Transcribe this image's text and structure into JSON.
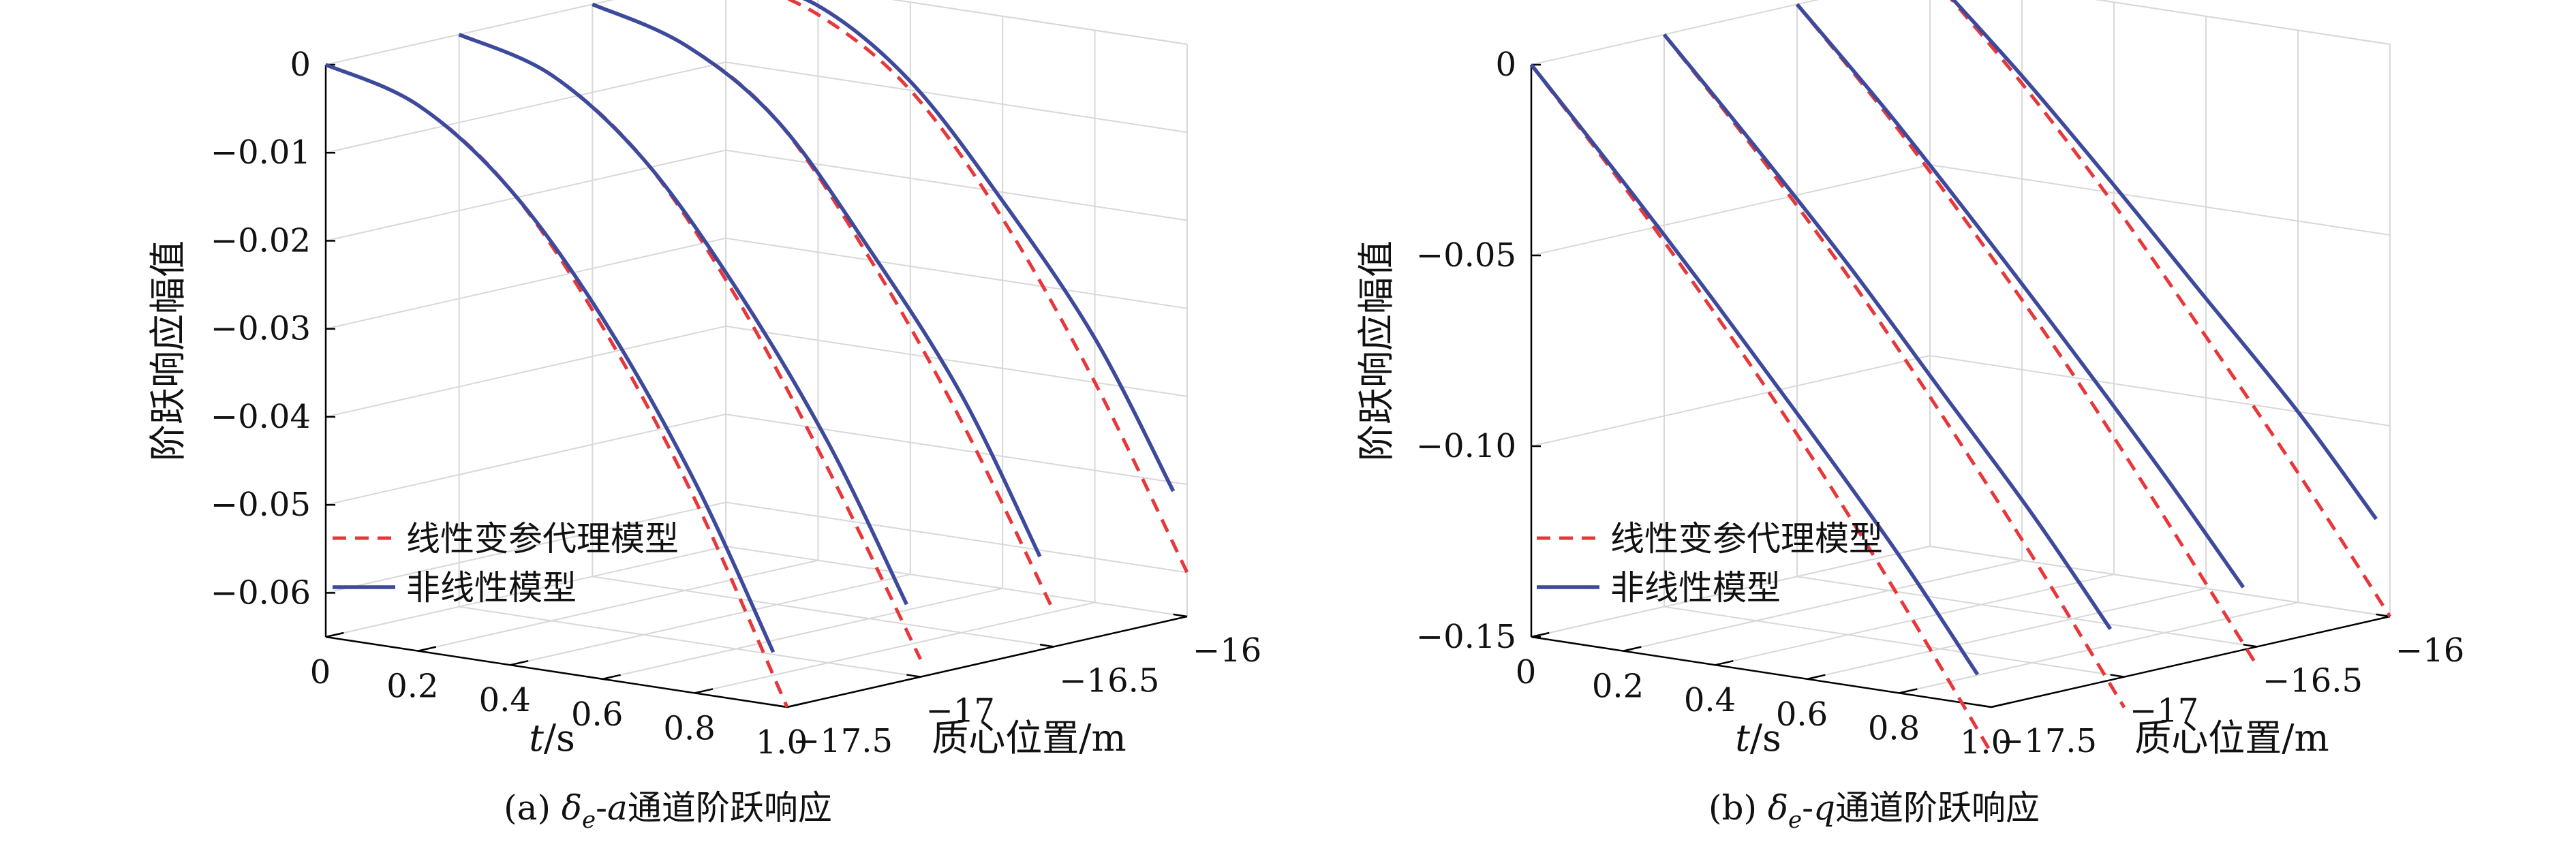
{
  "legend": {
    "linear": "线性变参代理模型",
    "nonlinear": "非线性模型"
  },
  "colors": {
    "linear": "#e8373a",
    "nonlinear": "#3d4a9c"
  },
  "chart_data": [
    {
      "type": "line",
      "caption": {
        "prefix": "(a) ",
        "symbol": "δ",
        "sub": "e",
        "channel": "-a",
        "suffix": "通道阶跃响应"
      },
      "xlabel": {
        "italic": "t",
        "unit": "/s"
      },
      "ylabel": "质心位置/m",
      "zlabel": "阶跃响应幅值",
      "xlim": [
        0,
        1.0
      ],
      "xticks": [
        "0",
        "0.2",
        "0.4",
        "0.6",
        "0.8",
        "1.0"
      ],
      "ylim": [
        -17.5,
        -16
      ],
      "yticks": [
        "−17.5",
        "−17",
        "−16.5",
        "−16"
      ],
      "zlim": [
        -0.065,
        0
      ],
      "zticks": [
        "0",
        "−0.01",
        "−0.02",
        "−0.03",
        "−0.04",
        "−0.05",
        "−0.06"
      ],
      "grid": true,
      "legend_position": "bottom-left",
      "series": [
        {
          "name": "线性变参代理模型",
          "style": "dashed",
          "position": -17.5,
          "t": [
            0,
            0.2,
            0.4,
            0.6,
            0.8,
            1.0
          ],
          "values": [
            0,
            -0.003,
            -0.011,
            -0.025,
            -0.043,
            -0.065
          ]
        },
        {
          "name": "非线性模型",
          "style": "solid",
          "position": -17.5,
          "t": [
            0,
            0.2,
            0.4,
            0.6,
            0.8,
            0.97
          ],
          "values": [
            0,
            -0.003,
            -0.011,
            -0.024,
            -0.041,
            -0.059
          ]
        },
        {
          "name": "线性变参代理模型",
          "style": "dashed",
          "position": -17,
          "t": [
            0,
            0.2,
            0.4,
            0.6,
            0.8,
            1.0
          ],
          "values": [
            0,
            -0.003,
            -0.011,
            -0.025,
            -0.043,
            -0.063
          ]
        },
        {
          "name": "非线性模型",
          "style": "solid",
          "position": -17,
          "t": [
            0,
            0.2,
            0.4,
            0.6,
            0.8,
            0.97
          ],
          "values": [
            0,
            -0.003,
            -0.011,
            -0.024,
            -0.04,
            -0.057
          ]
        },
        {
          "name": "线性变参代理模型",
          "style": "dashed",
          "position": -16.5,
          "t": [
            0,
            0.2,
            0.4,
            0.6,
            0.8,
            1.0
          ],
          "values": [
            0,
            -0.003,
            -0.01,
            -0.024,
            -0.041,
            -0.061
          ]
        },
        {
          "name": "非线性模型",
          "style": "solid",
          "position": -16.5,
          "t": [
            0,
            0.2,
            0.4,
            0.6,
            0.8,
            0.97
          ],
          "values": [
            0,
            -0.003,
            -0.01,
            -0.023,
            -0.038,
            -0.055
          ]
        },
        {
          "name": "线性变参代理模型",
          "style": "dashed",
          "position": -16,
          "t": [
            0,
            0.2,
            0.4,
            0.6,
            0.8,
            1.0
          ],
          "values": [
            0,
            -0.003,
            -0.01,
            -0.023,
            -0.04,
            -0.06
          ]
        },
        {
          "name": "非线性模型",
          "style": "solid",
          "position": -16,
          "t": [
            0,
            0.2,
            0.4,
            0.6,
            0.8,
            0.97
          ],
          "values": [
            0,
            -0.002,
            -0.009,
            -0.021,
            -0.035,
            -0.051
          ]
        }
      ]
    },
    {
      "type": "line",
      "caption": {
        "prefix": "(b) ",
        "symbol": "δ",
        "sub": "e",
        "channel": "-q",
        "suffix": "通道阶跃响应"
      },
      "xlabel": {
        "italic": "t",
        "unit": "/s"
      },
      "ylabel": "质心位置/m",
      "zlabel": "阶跃响应幅值",
      "xlim": [
        0,
        1.0
      ],
      "xticks": [
        "0",
        "0.2",
        "0.4",
        "0.6",
        "0.8",
        "1.0"
      ],
      "ylim": [
        -17.5,
        -16
      ],
      "yticks": [
        "−17.5",
        "−17",
        "−16.5",
        "−16"
      ],
      "zlim": [
        -0.15,
        0
      ],
      "zticks": [
        "0",
        "−0.05",
        "−0.10",
        "−0.15"
      ],
      "grid": true,
      "legend_position": "bottom-left",
      "series": [
        {
          "name": "线性变参代理模型",
          "style": "dashed",
          "position": -17.5,
          "t": [
            0,
            0.2,
            0.4,
            0.6,
            0.8,
            1.0
          ],
          "values": [
            0,
            -0.028,
            -0.058,
            -0.09,
            -0.125,
            -0.162
          ]
        },
        {
          "name": "非线性模型",
          "style": "solid",
          "position": -17.5,
          "t": [
            0,
            0.2,
            0.4,
            0.6,
            0.8,
            0.97
          ],
          "values": [
            0,
            -0.027,
            -0.055,
            -0.084,
            -0.114,
            -0.142
          ]
        },
        {
          "name": "线性变参代理模型",
          "style": "dashed",
          "position": -17,
          "t": [
            0,
            0.2,
            0.4,
            0.6,
            0.8,
            1.0
          ],
          "values": [
            0,
            -0.027,
            -0.056,
            -0.088,
            -0.122,
            -0.158
          ]
        },
        {
          "name": "非线性模型",
          "style": "solid",
          "position": -17,
          "t": [
            0,
            0.2,
            0.4,
            0.6,
            0.8,
            0.97
          ],
          "values": [
            0,
            -0.026,
            -0.053,
            -0.082,
            -0.111,
            -0.138
          ]
        },
        {
          "name": "线性变参代理模型",
          "style": "dashed",
          "position": -16.5,
          "t": [
            0,
            0.2,
            0.4,
            0.6,
            0.8,
            1.0
          ],
          "values": [
            0,
            -0.026,
            -0.055,
            -0.086,
            -0.12,
            -0.155
          ]
        },
        {
          "name": "非线性模型",
          "style": "solid",
          "position": -16.5,
          "t": [
            0,
            0.2,
            0.4,
            0.6,
            0.8,
            0.97
          ],
          "values": [
            0,
            -0.025,
            -0.052,
            -0.08,
            -0.109,
            -0.135
          ]
        },
        {
          "name": "线性变参代理模型",
          "style": "dashed",
          "position": -16,
          "t": [
            0,
            0.2,
            0.4,
            0.6,
            0.8,
            1.0
          ],
          "values": [
            0,
            -0.025,
            -0.053,
            -0.084,
            -0.116,
            -0.15
          ]
        },
        {
          "name": "非线性模型",
          "style": "solid",
          "position": -16,
          "t": [
            0,
            0.2,
            0.4,
            0.6,
            0.8,
            0.97
          ],
          "values": [
            0,
            -0.023,
            -0.048,
            -0.074,
            -0.1,
            -0.125
          ]
        }
      ]
    }
  ]
}
